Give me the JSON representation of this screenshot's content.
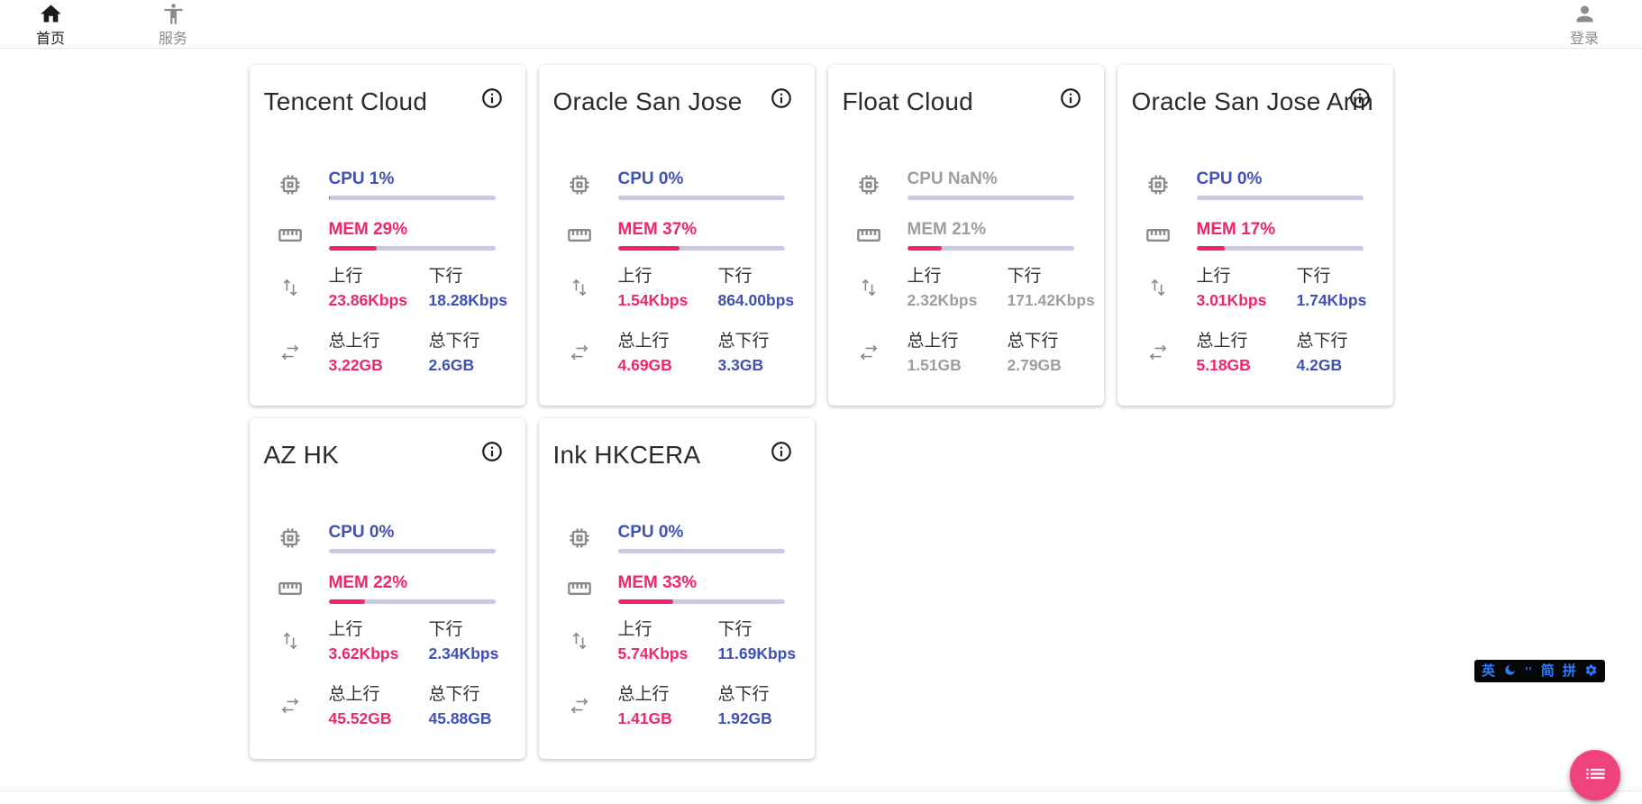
{
  "nav": {
    "home": {
      "label": "首页"
    },
    "services": {
      "label": "服务"
    },
    "login": {
      "label": "登录"
    }
  },
  "stats_labels": {
    "up": "上行",
    "down": "下行",
    "total_up": "总上行",
    "total_down": "总下行"
  },
  "cards": [
    {
      "name": "Tencent Cloud",
      "state": "online",
      "cpu": {
        "label": "CPU 1%",
        "pct": 1
      },
      "mem": {
        "label": "MEM 29%",
        "pct": 29
      },
      "net": {
        "up": "23.86Kbps",
        "down": "18.28Kbps",
        "total_up": "3.22GB",
        "total_down": "2.6GB"
      }
    },
    {
      "name": "Oracle San Jose",
      "state": "online",
      "cpu": {
        "label": "CPU 0%",
        "pct": 0
      },
      "mem": {
        "label": "MEM 37%",
        "pct": 37
      },
      "net": {
        "up": "1.54Kbps",
        "down": "864.00bps",
        "total_up": "4.69GB",
        "total_down": "3.3GB"
      }
    },
    {
      "name": "Float Cloud",
      "state": "stale",
      "cpu": {
        "label": "CPU NaN%",
        "pct": 0
      },
      "mem": {
        "label": "MEM 21%",
        "pct": 21
      },
      "net": {
        "up": "2.32Kbps",
        "down": "171.42Kbps",
        "total_up": "1.51GB",
        "total_down": "2.79GB"
      }
    },
    {
      "name": "Oracle San Jose Arm",
      "state": "online",
      "cpu": {
        "label": "CPU 0%",
        "pct": 0
      },
      "mem": {
        "label": "MEM 17%",
        "pct": 17
      },
      "net": {
        "up": "3.01Kbps",
        "down": "1.74Kbps",
        "total_up": "5.18GB",
        "total_down": "4.2GB"
      }
    },
    {
      "name": "AZ HK",
      "state": "online",
      "cpu": {
        "label": "CPU 0%",
        "pct": 0
      },
      "mem": {
        "label": "MEM 22%",
        "pct": 22
      },
      "net": {
        "up": "3.62Kbps",
        "down": "2.34Kbps",
        "total_up": "45.52GB",
        "total_down": "45.88GB"
      }
    },
    {
      "name": "Ink HKCERA",
      "state": "online",
      "cpu": {
        "label": "CPU 0%",
        "pct": 0
      },
      "mem": {
        "label": "MEM 33%",
        "pct": 33
      },
      "net": {
        "up": "5.74Kbps",
        "down": "11.69Kbps",
        "total_up": "1.41GB",
        "total_down": "1.92GB"
      }
    }
  ],
  "ime_bar": {
    "lang": "英",
    "punct": "’’",
    "simplified": "简",
    "pinyin": "拼"
  },
  "icons": {
    "nav_home": "home-icon",
    "nav_services": "accessibility-icon",
    "nav_login": "person-icon",
    "card_info": "info-icon",
    "cpu": "chip-icon",
    "mem": "ruler-icon",
    "net_rate": "swap-vert-icon",
    "net_total": "swap-horiz-icon",
    "fab": "list-icon",
    "ime": [
      "moon-icon",
      "gear-icon"
    ]
  },
  "colors": {
    "accent_blue": "#3f51b5",
    "accent_pink": "#f1256d",
    "bar_track": "#c5cae9",
    "stale_gray": "#9e9e9e",
    "fab_pink": "#f1437b",
    "ime_blue": "#2b7cff"
  }
}
